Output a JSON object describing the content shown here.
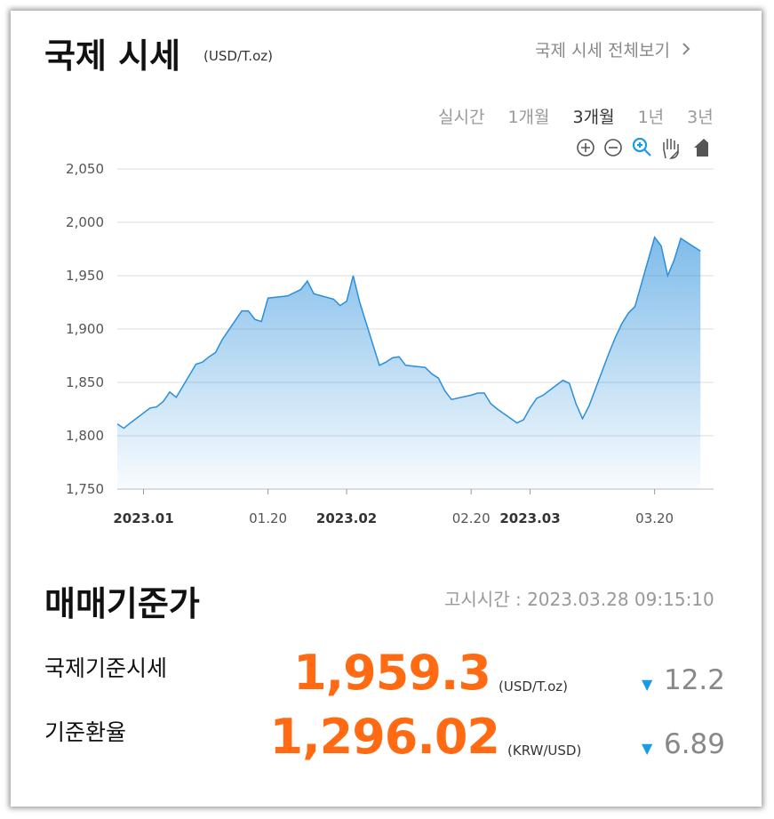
{
  "header": {
    "title": "국제 시세",
    "unit": "(USD/T.oz)",
    "link": "국제 시세 전체보기"
  },
  "tabs": {
    "items": [
      "실시간",
      "1개월",
      "3개월",
      "1년",
      "3년"
    ],
    "active": 2
  },
  "chart_data": {
    "type": "area",
    "color": "#2a8fdb",
    "x": [
      "2022.12.28",
      "2022.12.29",
      "2022.12.30",
      "2023.01.02",
      "2023.01.03",
      "2023.01.04",
      "2023.01.05",
      "2023.01.06",
      "2023.01.09",
      "2023.01.10",
      "2023.01.11",
      "2023.01.12",
      "2023.01.13",
      "2023.01.16",
      "2023.01.17",
      "2023.01.18",
      "2023.01.19",
      "2023.01.20",
      "2023.01.23",
      "2023.01.24",
      "2023.01.25",
      "2023.01.26",
      "2023.01.27",
      "2023.01.30",
      "2023.01.31",
      "2023.02.01",
      "2023.02.02",
      "2023.02.03",
      "2023.02.06",
      "2023.02.07",
      "2023.02.08",
      "2023.02.09",
      "2023.02.10",
      "2023.02.13",
      "2023.02.14",
      "2023.02.15",
      "2023.02.16",
      "2023.02.17",
      "2023.02.20",
      "2023.02.21",
      "2023.02.22",
      "2023.02.23",
      "2023.02.24",
      "2023.02.27",
      "2023.02.28",
      "2023.03.01",
      "2023.03.02",
      "2023.03.03",
      "2023.03.06",
      "2023.03.07",
      "2023.03.08",
      "2023.03.09",
      "2023.03.10",
      "2023.03.13",
      "2023.03.14",
      "2023.03.15",
      "2023.03.16",
      "2023.03.17",
      "2023.03.20",
      "2023.03.21",
      "2023.03.22",
      "2023.03.23",
      "2023.03.24",
      "2023.03.27"
    ],
    "values": [
      1811,
      1807,
      1812,
      1826,
      1827,
      1832,
      1841,
      1836,
      1867,
      1869,
      1874,
      1878,
      1890,
      1917,
      1917,
      1909,
      1907,
      1929,
      1931,
      1934,
      1937,
      1945,
      1933,
      1928,
      1922,
      1926,
      1950,
      1925,
      1866,
      1869,
      1873,
      1874,
      1866,
      1864,
      1858,
      1854,
      1842,
      1834,
      1838,
      1840,
      1840,
      1830,
      1825,
      1812,
      1815,
      1826,
      1835,
      1838,
      1852,
      1849,
      1830,
      1816,
      1828,
      1877,
      1892,
      1905,
      1915,
      1921,
      1986,
      1978,
      1950,
      1965,
      1985,
      1973
    ],
    "xlim": [
      "2022.12.28",
      "2023.03.29"
    ],
    "xticks": [
      {
        "value": "2023.01.01",
        "label": "2023.01"
      },
      {
        "value": "2023.01.20",
        "label": "01.20"
      },
      {
        "value": "2023.02.01",
        "label": "2023.02"
      },
      {
        "value": "2023.02.20",
        "label": "02.20"
      },
      {
        "value": "2023.03.01",
        "label": "2023.03"
      },
      {
        "value": "2023.03.20",
        "label": "03.20"
      }
    ],
    "ylim": [
      1750,
      2050
    ],
    "yticks": [
      {
        "value": 1750,
        "label": "1,750"
      },
      {
        "value": 1800,
        "label": "1,800"
      },
      {
        "value": 1850,
        "label": "1,850"
      },
      {
        "value": 1900,
        "label": "1,900"
      },
      {
        "value": 1950,
        "label": "1,950"
      },
      {
        "value": 2000,
        "label": "2,000"
      },
      {
        "value": 2050,
        "label": "2,050"
      }
    ],
    "grid": true
  },
  "rates": {
    "title": "매매기준가",
    "time_label": "고시시간",
    "time": "2023.03.28 09:15:10",
    "rows": [
      {
        "label": "국제기준시세",
        "value": "1,959.3",
        "unit": "(USD/T.oz)",
        "change": "12.2"
      },
      {
        "label": "기준환율",
        "value": "1,296.02",
        "unit": "(KRW/USD)",
        "change": "6.89"
      }
    ]
  }
}
